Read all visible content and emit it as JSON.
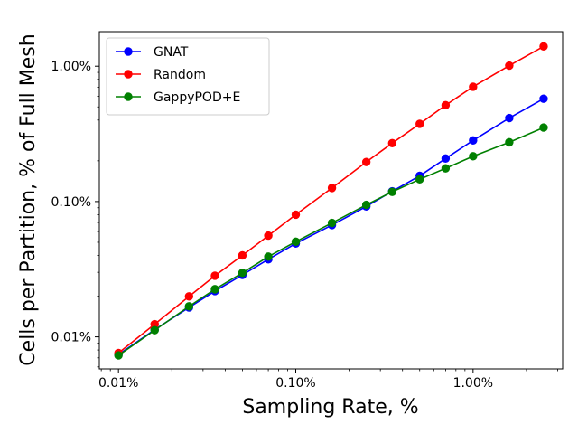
{
  "chart_data": {
    "type": "line",
    "title": "",
    "xlabel": "Sampling Rate, %",
    "ylabel": "Cells per Partition, % of Full Mesh",
    "xscale": "log",
    "yscale": "log",
    "xlim": [
      0.0078,
      3.2
    ],
    "ylim": [
      0.0058,
      1.8
    ],
    "grid": false,
    "legend_position": "top-left",
    "x_ticks": [
      {
        "value": 0.01,
        "label": "0.01%"
      },
      {
        "value": 0.1,
        "label": "0.10%"
      },
      {
        "value": 1.0,
        "label": "1.00%"
      }
    ],
    "y_ticks": [
      {
        "value": 0.01,
        "label": "0.01%"
      },
      {
        "value": 0.1,
        "label": "0.10%"
      },
      {
        "value": 1.0,
        "label": "1.00%"
      }
    ],
    "x": [
      0.01,
      0.016,
      0.025,
      0.035,
      0.05,
      0.07,
      0.1,
      0.16,
      0.25,
      0.35,
      0.5,
      0.7,
      1.0,
      1.6,
      2.5
    ],
    "series": [
      {
        "name": "GNAT",
        "color": "#0000ff",
        "values": [
          0.0074,
          0.0113,
          0.0165,
          0.0218,
          0.0287,
          0.0374,
          0.049,
          0.067,
          0.092,
          0.119,
          0.155,
          0.208,
          0.283,
          0.414,
          0.575
        ]
      },
      {
        "name": "Random",
        "color": "#ff0000",
        "values": [
          0.0076,
          0.0124,
          0.0199,
          0.0283,
          0.04,
          0.056,
          0.08,
          0.126,
          0.196,
          0.27,
          0.375,
          0.515,
          0.705,
          1.01,
          1.4
        ]
      },
      {
        "name": "GappyPOD+E",
        "color": "#008000",
        "values": [
          0.0073,
          0.0112,
          0.0168,
          0.0225,
          0.0297,
          0.0392,
          0.0505,
          0.0695,
          0.0945,
          0.118,
          0.146,
          0.176,
          0.216,
          0.274,
          0.352
        ]
      }
    ]
  }
}
